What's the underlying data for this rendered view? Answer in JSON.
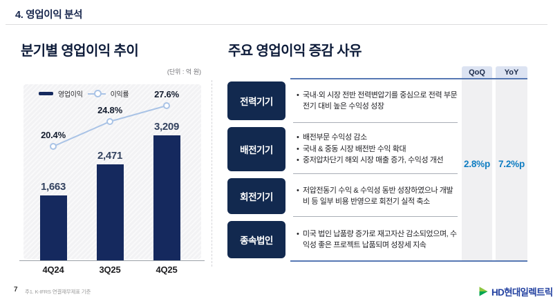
{
  "slide": {
    "header_title": "4. 영업이익 분석",
    "page_number": "7",
    "footnote": "주1. K-IFRS 연결재무제표 기준",
    "logo_text": "HD현대일렉트릭"
  },
  "left_panel": {
    "title": "분기별 영업이익 추이",
    "unit_label": "(단위 : 억 원)"
  },
  "chart_data": {
    "type": "bar",
    "categories": [
      "4Q24",
      "3Q25",
      "4Q25"
    ],
    "series": [
      {
        "name": "영업이익",
        "type": "bar",
        "values": [
          1663,
          2471,
          3209
        ],
        "color": "#15295e"
      },
      {
        "name": "이익률",
        "type": "line",
        "values": [
          20.4,
          24.8,
          27.6
        ],
        "unit": "%",
        "color": "#a9c3e6"
      }
    ],
    "title": "분기별 영업이익 추이",
    "unit": "억 원",
    "grid": false,
    "legend_position": "top-left"
  },
  "right_panel": {
    "title": "주요 영업이익 증감 사유",
    "col_headers": [
      "QoQ",
      "YoY"
    ],
    "qoq_value": "2.8%p",
    "yoy_value": "7.2%p",
    "rows": [
      {
        "label": "전력기기",
        "bullets": [
          "국내·외 시장 전반 전력변압기를 중심으로 전력 부문 전기 대비 높은 수익성 성장"
        ]
      },
      {
        "label": "배전기기",
        "bullets": [
          "배전부문 수익성 감소",
          "국내 & 중동 시장 배전반 수익 확대",
          "중저압차단기 해외 시장 매출 증가, 수익성 개선"
        ]
      },
      {
        "label": "회전기기",
        "bullets": [
          "저압전동기 수익 & 수익성 동반 성장하였으나 개발비 등 일부 비용 반영으로 회전기 실적 축소"
        ]
      },
      {
        "label": "종속법인",
        "bullets": [
          "미국 법인 납품량 증가로 재고자산 감소되었으며, 수익성 좋은 프로젝트 납품되며 성장세 지속"
        ]
      }
    ]
  },
  "colors": {
    "navy": "#15295e",
    "line_blue": "#a9c3e6",
    "accent_blue": "#0f7dc2",
    "rule_blue": "#5577b3",
    "logo_green_light": "#8dc63f",
    "logo_green_dark": "#00a551"
  }
}
